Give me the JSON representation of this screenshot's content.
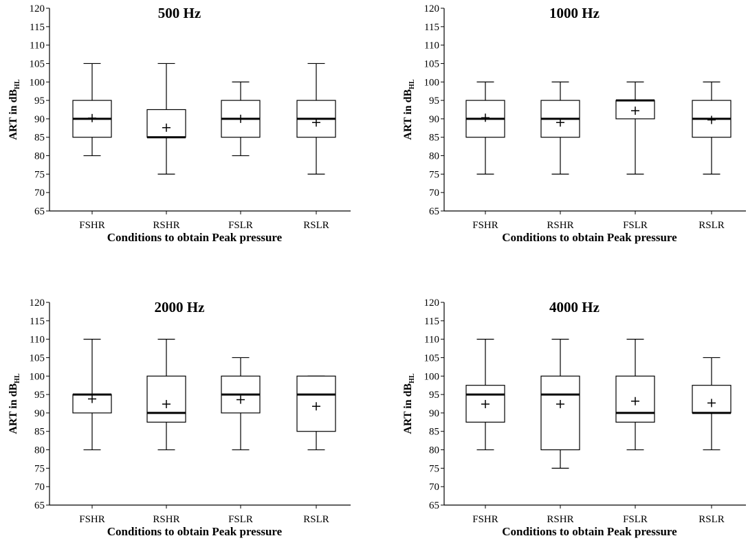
{
  "chart_data": [
    {
      "type": "box",
      "title": "500 Hz",
      "xlabel": "Conditions to obtain Peak pressure",
      "ylabel_main": "ART in dB",
      "ylabel_sub": "HL",
      "ylim": [
        65,
        120
      ],
      "ytick_step": 5,
      "categories": [
        "FSHR",
        "RSHR",
        "FSLR",
        "RSLR"
      ],
      "boxes": [
        {
          "min": 80,
          "q1": 85,
          "median": 90,
          "q3": 95,
          "max": 105,
          "mean": 90.2
        },
        {
          "min": 75,
          "q1": 85,
          "median": 85,
          "q3": 92.5,
          "max": 105,
          "mean": 87.6
        },
        {
          "min": 80,
          "q1": 85,
          "median": 90,
          "q3": 95,
          "max": 100,
          "mean": 90
        },
        {
          "min": 75,
          "q1": 85,
          "median": 90,
          "q3": 95,
          "max": 105,
          "mean": 89
        }
      ]
    },
    {
      "type": "box",
      "title": "1000 Hz",
      "xlabel": "Conditions to obtain Peak pressure",
      "ylabel_main": "ART in dB",
      "ylabel_sub": "HL",
      "ylim": [
        65,
        120
      ],
      "ytick_step": 5,
      "categories": [
        "FSHR",
        "RSHR",
        "FSLR",
        "RSLR"
      ],
      "boxes": [
        {
          "min": 75,
          "q1": 85,
          "median": 90,
          "q3": 95,
          "max": 100,
          "mean": 90.3
        },
        {
          "min": 75,
          "q1": 85,
          "median": 90,
          "q3": 95,
          "max": 100,
          "mean": 89
        },
        {
          "min": 75,
          "q1": 90,
          "median": 95,
          "q3": 95,
          "max": 100,
          "mean": 92.2
        },
        {
          "min": 75,
          "q1": 85,
          "median": 90,
          "q3": 95,
          "max": 100,
          "mean": 89.7
        }
      ]
    },
    {
      "type": "box",
      "title": "2000 Hz",
      "xlabel": "Conditions to obtain Peak pressure",
      "ylabel_main": "ART in dB",
      "ylabel_sub": "HL",
      "ylim": [
        65,
        120
      ],
      "ytick_step": 5,
      "categories": [
        "FSHR",
        "RSHR",
        "FSLR",
        "RSLR"
      ],
      "boxes": [
        {
          "min": 80,
          "q1": 90,
          "median": 95,
          "q3": 95,
          "max": 110,
          "mean": 93.8
        },
        {
          "min": 80,
          "q1": 87.5,
          "median": 90,
          "q3": 100,
          "max": 110,
          "mean": 92.4
        },
        {
          "min": 80,
          "q1": 90,
          "median": 95,
          "q3": 100,
          "max": 105,
          "mean": 93.6
        },
        {
          "min": 80,
          "q1": 85,
          "median": 95,
          "q3": 100,
          "max": 100,
          "mean": 91.8
        }
      ]
    },
    {
      "type": "box",
      "title": "4000 Hz",
      "xlabel": "Conditions to obtain Peak pressure",
      "ylabel_main": "ART in dB",
      "ylabel_sub": "HL",
      "ylim": [
        65,
        120
      ],
      "ytick_step": 5,
      "categories": [
        "FSHR",
        "RSHR",
        "FSLR",
        "RSLR"
      ],
      "boxes": [
        {
          "min": 80,
          "q1": 87.5,
          "median": 95,
          "q3": 97.5,
          "max": 110,
          "mean": 92.4
        },
        {
          "min": 75,
          "q1": 80,
          "median": 95,
          "q3": 100,
          "max": 110,
          "mean": 92.4
        },
        {
          "min": 80,
          "q1": 87.5,
          "median": 90,
          "q3": 100,
          "max": 110,
          "mean": 93.2
        },
        {
          "min": 80,
          "q1": 90,
          "median": 90,
          "q3": 97.5,
          "max": 105,
          "mean": 92.7
        }
      ]
    }
  ]
}
